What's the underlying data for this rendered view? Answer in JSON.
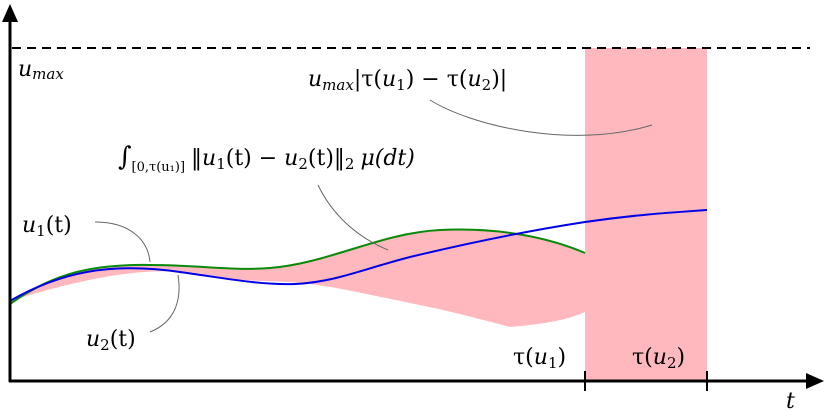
{
  "colors": {
    "axis": "#000000",
    "u1_curve": "#0a8a0a",
    "u2_curve": "#0000e6",
    "shade": "#ffb8be",
    "leader": "#666666",
    "background": "#ffffff"
  },
  "labels": {
    "u_max": {
      "base": "u",
      "sub": "max"
    },
    "t_axis": "t",
    "u1": {
      "base": "u",
      "sub": "1",
      "arg": "(t)"
    },
    "u2": {
      "base": "u",
      "sub": "2",
      "arg": "(t)"
    },
    "tau_u1": {
      "tau": "τ(",
      "base": "u",
      "sub": "1",
      "close": ")"
    },
    "tau_u2": {
      "tau": "τ(",
      "base": "u",
      "sub": "2",
      "close": ")"
    },
    "time_gap_term": {
      "base": "u",
      "sub": "max",
      "open": "|τ(",
      "u": "u",
      "s1": "1",
      "mid": ") − τ(",
      "s2": "2",
      "close": ")|"
    },
    "integral_term": {
      "sign": "∫",
      "domain_sub": "[0,τ(u₁)]",
      "norm_open": "‖",
      "u": "u",
      "s1": "1",
      "mid": "(t) − ",
      "s2": "2",
      "after": "(t)",
      "norm_close": "‖",
      "norm_sub": "2",
      "measure": "μ(dt)"
    }
  }
}
